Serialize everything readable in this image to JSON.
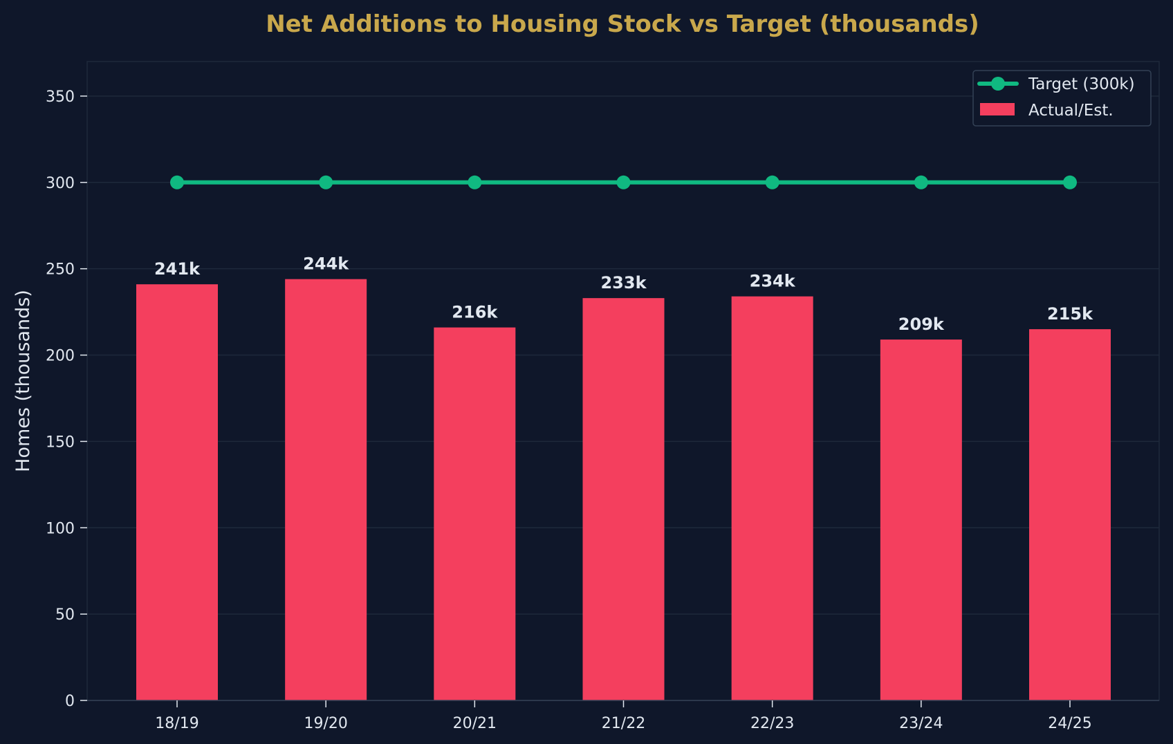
{
  "chart_data": {
    "type": "bar",
    "title": "Net Additions to Housing Stock vs Target (thousands)",
    "xlabel": "",
    "ylabel": "Homes (thousands)",
    "categories": [
      "18/19",
      "19/20",
      "20/21",
      "21/22",
      "22/23",
      "23/24",
      "24/25"
    ],
    "ylim": [
      0,
      370
    ],
    "yticks": [
      0,
      50,
      100,
      150,
      200,
      250,
      300,
      350
    ],
    "grid": true,
    "legend_position": "top-right",
    "series": [
      {
        "name": "Actual/Est.",
        "kind": "bar",
        "color": "#f43f5e",
        "values": [
          241,
          244,
          216,
          233,
          234,
          209,
          215
        ],
        "labels": [
          "241k",
          "244k",
          "216k",
          "233k",
          "234k",
          "209k",
          "215k"
        ]
      },
      {
        "name": "Target (300k)",
        "kind": "line",
        "color": "#10b981",
        "values": [
          300,
          300,
          300,
          300,
          300,
          300,
          300
        ]
      }
    ]
  },
  "colors": {
    "background": "#0f172a",
    "plot_background": "#0f172a",
    "title": "#c9a84c",
    "text": "#e2e8f0",
    "grid": "#1e293b",
    "spine": "#334155"
  }
}
